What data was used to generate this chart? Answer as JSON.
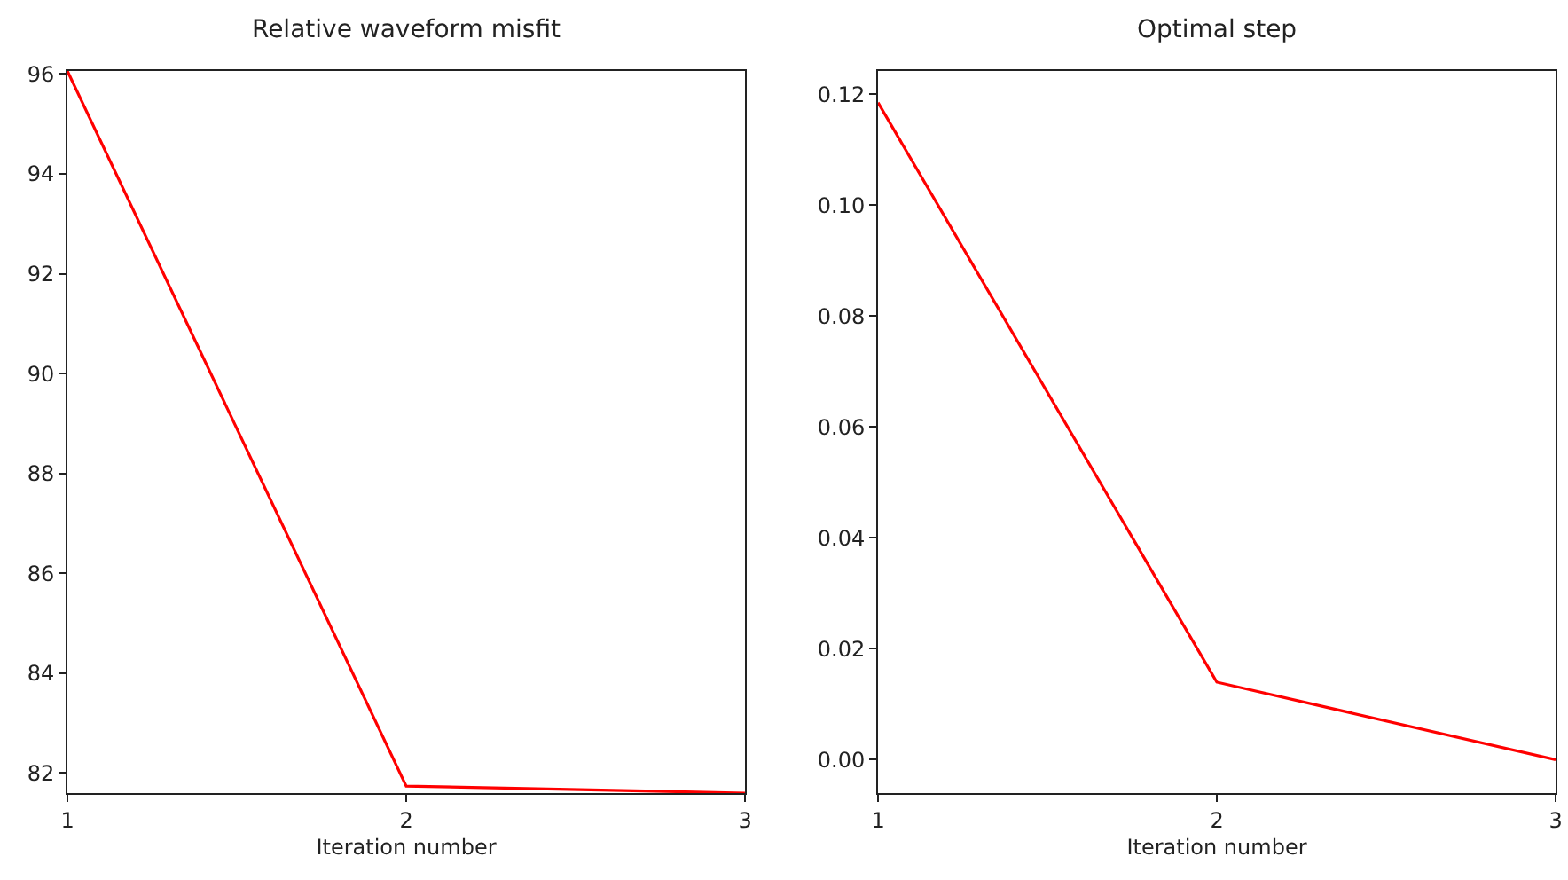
{
  "chart_data": [
    {
      "type": "line",
      "title": "Relative waveform misfit",
      "xlabel": "Iteration number",
      "x": [
        1,
        2,
        3
      ],
      "xlim": [
        1,
        3
      ],
      "xticks": [
        1,
        2,
        3
      ],
      "ylim": [
        81.6,
        96.06
      ],
      "yticks": [
        82,
        84,
        86,
        88,
        90,
        92,
        94,
        96
      ],
      "grid": false,
      "series": [
        {
          "color": "#ff0000",
          "values": [
            96.06,
            81.74,
            81.6
          ]
        }
      ]
    },
    {
      "type": "line",
      "title": "Optimal step",
      "xlabel": "Iteration number",
      "x": [
        1,
        2,
        3
      ],
      "xlim": [
        1,
        3
      ],
      "xticks": [
        1,
        2,
        3
      ],
      "ylim": [
        -0.006,
        0.1242
      ],
      "yticks": [
        {
          "value": 0,
          "label": "0.00"
        },
        {
          "value": 0.02,
          "label": "0.02"
        },
        {
          "value": 0.04,
          "label": "0.04"
        },
        {
          "value": 0.06,
          "label": "0.06"
        },
        {
          "value": 0.08,
          "label": "0.08"
        },
        {
          "value": 0.1,
          "label": "0.10"
        },
        {
          "value": 0.12,
          "label": "0.12"
        }
      ],
      "grid": false,
      "series": [
        {
          "color": "#ff0000",
          "values": [
            0.1185,
            0.014,
            0
          ]
        }
      ]
    }
  ]
}
